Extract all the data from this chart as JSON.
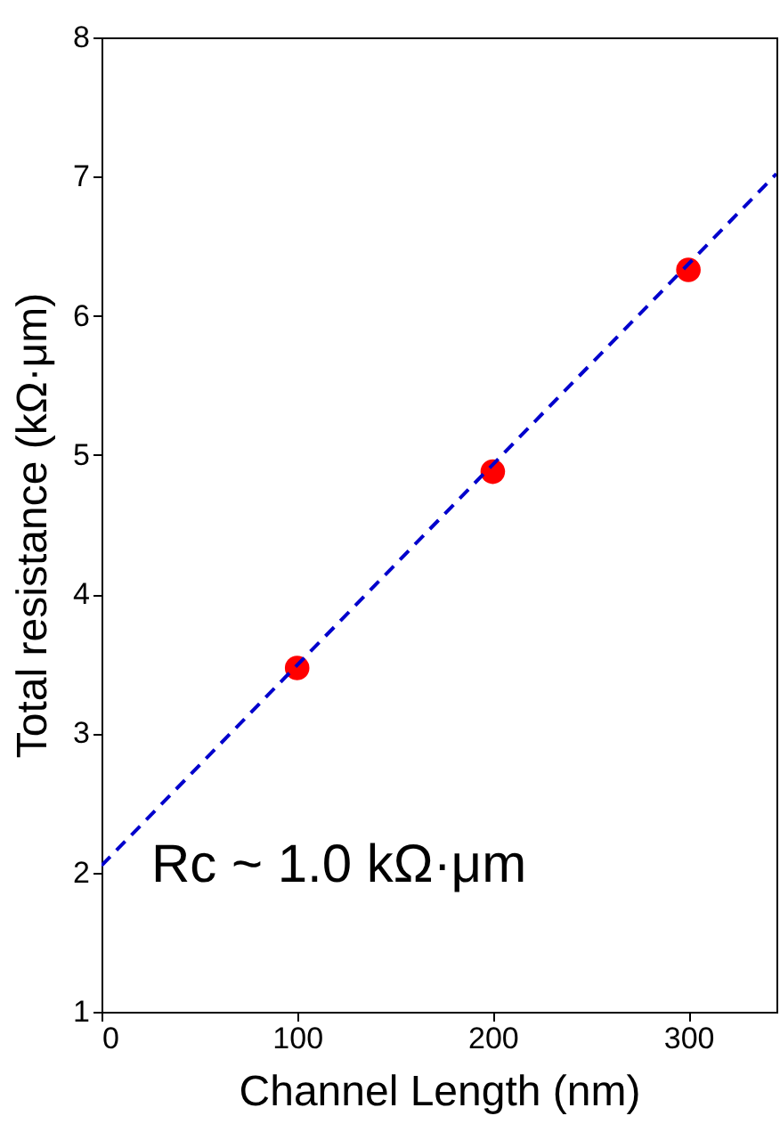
{
  "chart_data": {
    "type": "scatter",
    "xlabel": "Channel Length (nm)",
    "ylabel": "Total resistance (kΩ·μm)",
    "x": [
      100,
      200,
      300
    ],
    "series": [
      {
        "color": "#ff0000",
        "values": [
          3.47,
          4.88,
          6.33
        ],
        "marker": "circle"
      },
      {
        "type": "line",
        "color": "#0000cc",
        "x": [
          0,
          345
        ],
        "values": [
          2.05,
          7.02
        ],
        "line_style": "dashed",
        "marker": "none"
      }
    ],
    "xlim": [
      0,
      345
    ],
    "xticks": [
      0,
      100,
      200,
      300
    ],
    "ylim": [
      1,
      8
    ],
    "yticks": [
      1,
      2,
      3,
      4,
      5,
      6,
      7,
      8
    ],
    "grid": false,
    "annotations": [
      "Rc ~ 1.0 kΩ·μm"
    ]
  }
}
